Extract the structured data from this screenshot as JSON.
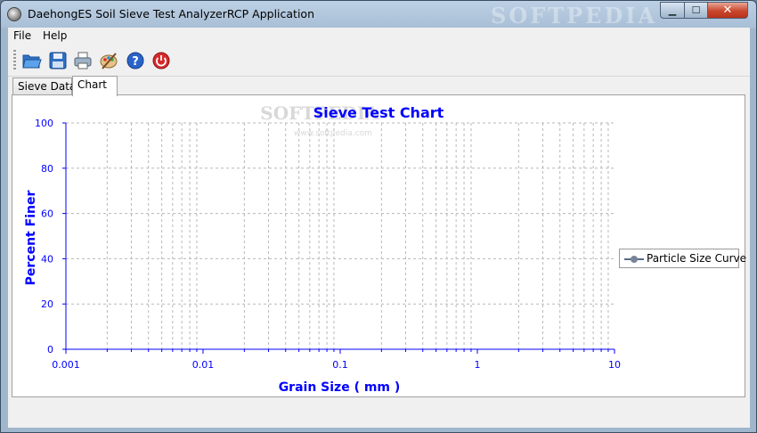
{
  "window": {
    "title": "DaehongES Soil Sieve Test AnalyzerRCP Application",
    "watermark": "SOFTPEDIA",
    "buttons": {
      "minimize": "▁",
      "maximize": "☐",
      "close": "✕"
    }
  },
  "menu": {
    "items": [
      {
        "label": "File"
      },
      {
        "label": "Help"
      }
    ]
  },
  "toolbar": {
    "items": [
      {
        "name": "open-folder-icon"
      },
      {
        "name": "save-icon"
      },
      {
        "name": "print-icon"
      },
      {
        "name": "palette-icon"
      },
      {
        "name": "help-icon"
      },
      {
        "name": "power-icon"
      }
    ]
  },
  "tabs": [
    {
      "label": "Sieve Data",
      "active": false
    },
    {
      "label": "Chart",
      "active": true
    }
  ],
  "colors": {
    "accent": "#0000ff",
    "grid": "#b8b8b8",
    "series": "#5a6b8c"
  },
  "chart_data": {
    "type": "line",
    "title": "Sieve Test Chart",
    "watermark": "SOFTPEDIA",
    "watermark_url": "www.softpedia.com",
    "xlabel": "Grain Size ( mm )",
    "ylabel": "Percent Finer",
    "xscale": "log",
    "xlim": [
      0.001,
      10
    ],
    "ylim": [
      0,
      100
    ],
    "xticks": [
      "0.001",
      "0.01",
      "0.1",
      "1",
      "10"
    ],
    "yticks": [
      "0",
      "20",
      "40",
      "60",
      "80",
      "100"
    ],
    "grid": true,
    "legend_position": "right",
    "series": [
      {
        "name": "Particle Size Curve",
        "x": [],
        "y": []
      }
    ]
  }
}
